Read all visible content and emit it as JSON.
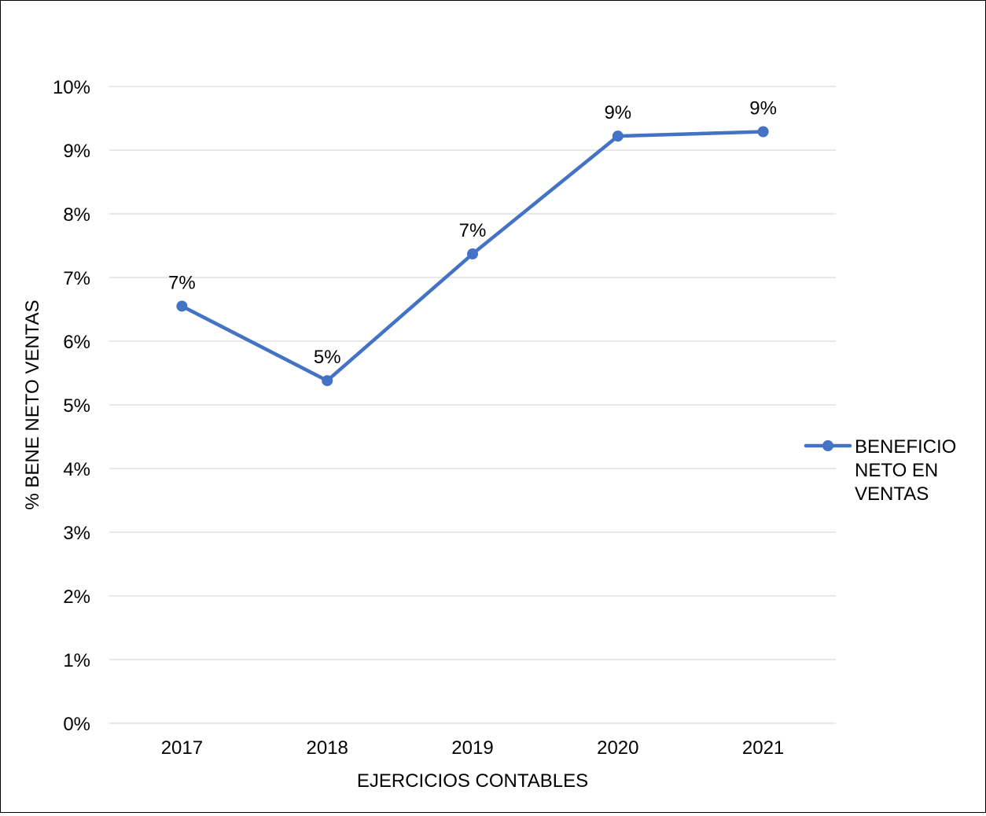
{
  "chart_data": {
    "type": "line",
    "title": "",
    "xlabel": "EJERCICIOS CONTABLES",
    "ylabel": "% BENE NETO VENTAS",
    "categories": [
      "2017",
      "2018",
      "2019",
      "2020",
      "2021"
    ],
    "series": [
      {
        "name": "BENEFICIO NETO EN VENTAS",
        "values": [
          6.55,
          5.38,
          7.37,
          9.22,
          9.29
        ],
        "data_labels": [
          "7%",
          "5%",
          "7%",
          "9%",
          "9%"
        ],
        "color": "#4472C4"
      }
    ],
    "ylim": [
      0,
      10
    ],
    "yticks": [
      0,
      1,
      2,
      3,
      4,
      5,
      6,
      7,
      8,
      9,
      10
    ],
    "ytick_labels": [
      "0%",
      "1%",
      "2%",
      "3%",
      "4%",
      "5%",
      "6%",
      "7%",
      "8%",
      "9%",
      "10%"
    ],
    "grid": true,
    "gridline_color": "#D9D9D9",
    "legend_position": "right",
    "legend_lines": [
      "BENEFICIO",
      "NETO EN",
      "VENTAS"
    ]
  }
}
